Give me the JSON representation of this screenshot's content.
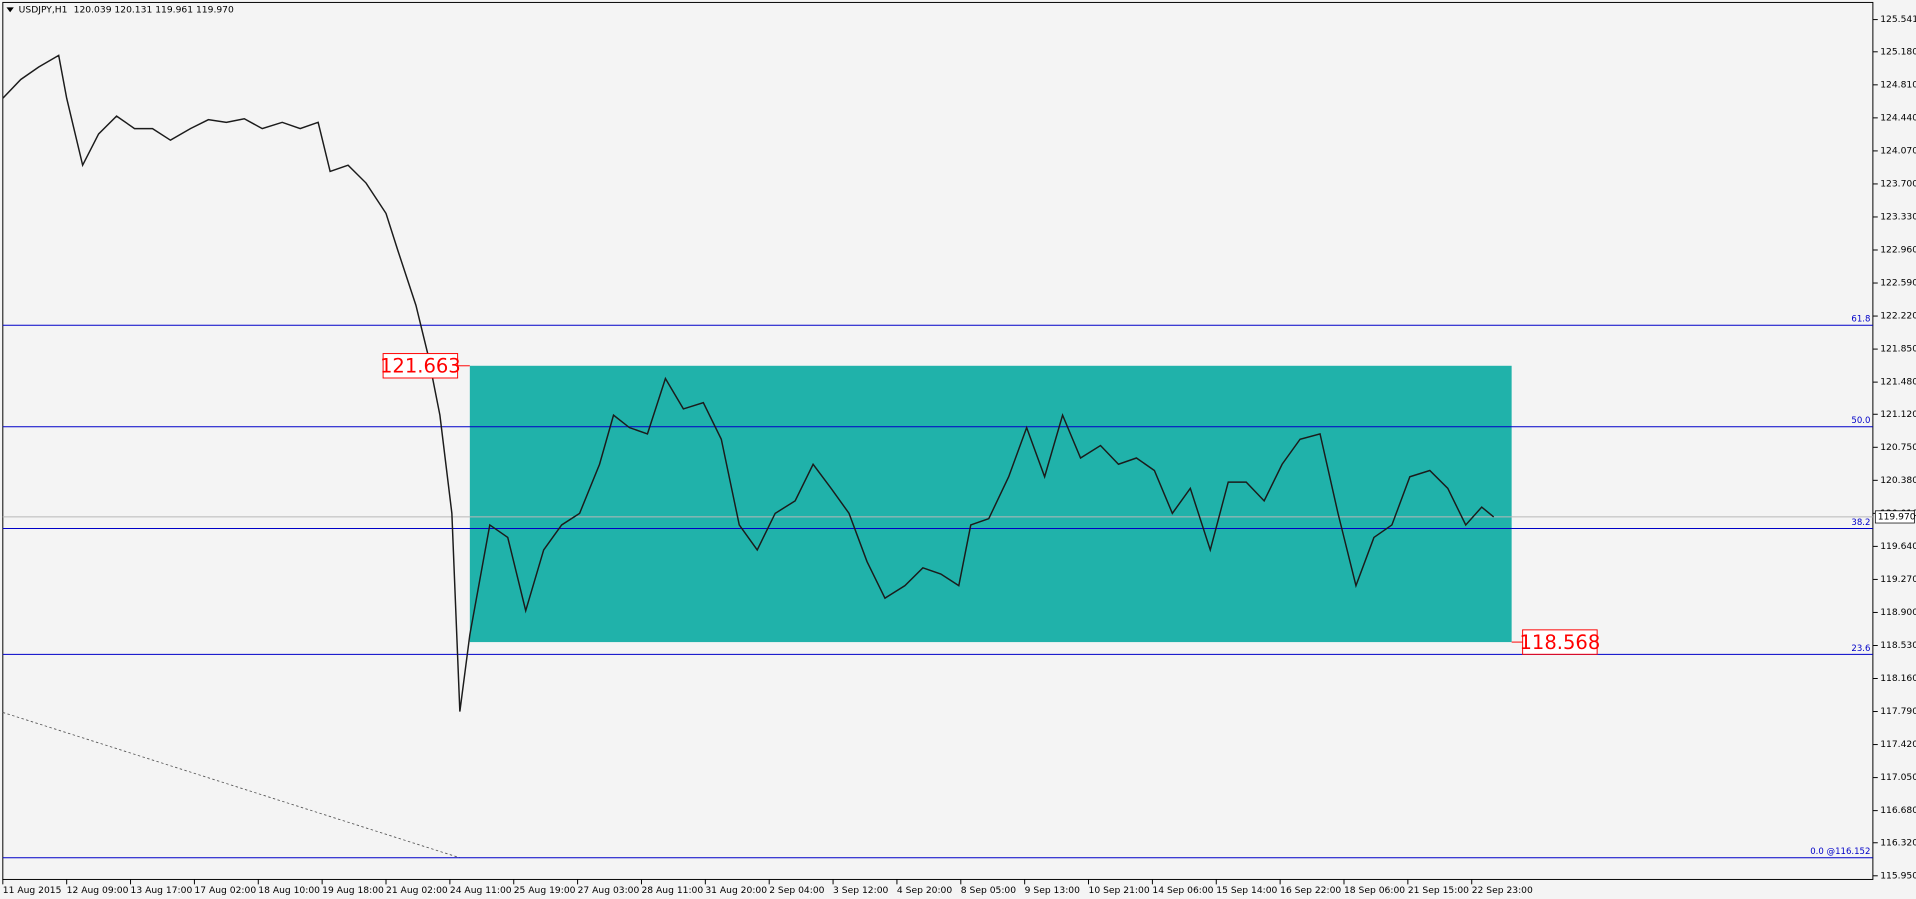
{
  "chart_data": {
    "type": "line",
    "title": "USDJPY,H1",
    "subtitle": "120.039 120.131 119.961 119.970",
    "x": [
      0,
      9,
      18,
      28,
      32,
      40,
      48,
      57,
      66,
      75,
      84,
      94,
      103,
      112,
      121,
      130,
      140,
      149,
      158,
      164,
      173,
      182,
      192,
      198,
      207,
      213,
      219,
      225,
      229,
      234,
      244,
      253,
      262,
      271,
      280,
      289,
      299,
      306,
      314,
      323,
      332,
      341,
      351,
      360,
      369,
      378,
      387,
      397,
      406,
      415,
      424,
      433,
      442,
      452,
      461,
      470,
      479,
      485,
      494,
      504,
      513,
      522,
      531,
      540,
      550,
      559,
      568,
      577,
      586,
      595,
      605,
      614,
      623,
      632,
      641,
      650,
      660,
      669,
      678,
      687,
      696,
      705,
      715,
      724,
      733,
      741,
      747
    ],
    "series": [
      {
        "name": "USDJPY,H1",
        "color": "#1b1b1b",
        "values": [
          124.66,
          124.87,
          125.01,
          125.14,
          124.66,
          123.91,
          124.26,
          124.46,
          124.32,
          124.32,
          124.19,
          124.32,
          124.42,
          124.39,
          124.43,
          124.32,
          124.39,
          124.32,
          124.39,
          123.84,
          123.91,
          123.71,
          123.37,
          122.95,
          122.34,
          121.79,
          121.11,
          120.01,
          117.79,
          118.65,
          119.88,
          119.74,
          118.92,
          119.6,
          119.88,
          120.01,
          120.56,
          121.11,
          120.97,
          120.9,
          121.52,
          121.18,
          121.25,
          120.84,
          119.88,
          119.6,
          120.01,
          120.15,
          120.56,
          120.29,
          120.01,
          119.47,
          119.06,
          119.2,
          119.4,
          119.33,
          119.2,
          119.88,
          119.95,
          120.42,
          120.97,
          120.42,
          121.11,
          120.63,
          120.77,
          120.56,
          120.63,
          120.49,
          120.01,
          120.29,
          119.6,
          120.36,
          120.36,
          120.15,
          120.56,
          120.84,
          120.9,
          120.01,
          119.2,
          119.74,
          119.88,
          120.42,
          120.49,
          120.29,
          119.88,
          120.08,
          119.97
        ]
      }
    ],
    "xlim": [
      0,
      937
    ],
    "ylim": [
      115.909,
      125.733
    ],
    "xticks": [
      {
        "value": 0,
        "label": "11 Aug 2015"
      },
      {
        "value": 32,
        "label": "12 Aug 09:00"
      },
      {
        "value": 64,
        "label": "13 Aug 17:00"
      },
      {
        "value": 96,
        "label": "17 Aug 02:00"
      },
      {
        "value": 128,
        "label": "18 Aug 10:00"
      },
      {
        "value": 160,
        "label": "19 Aug 18:00"
      },
      {
        "value": 192,
        "label": "21 Aug 02:00"
      },
      {
        "value": 224,
        "label": "24 Aug 11:00"
      },
      {
        "value": 256,
        "label": "25 Aug 19:00"
      },
      {
        "value": 288,
        "label": "27 Aug 03:00"
      },
      {
        "value": 320,
        "label": "28 Aug 11:00"
      },
      {
        "value": 352,
        "label": "31 Aug 20:00"
      },
      {
        "value": 384,
        "label": "2 Sep 04:00"
      },
      {
        "value": 416,
        "label": "3 Sep 12:00"
      },
      {
        "value": 448,
        "label": "4 Sep 20:00"
      },
      {
        "value": 480,
        "label": "8 Sep 05:00"
      },
      {
        "value": 512,
        "label": "9 Sep 13:00"
      },
      {
        "value": 544,
        "label": "10 Sep 21:00"
      },
      {
        "value": 576,
        "label": "14 Sep 06:00"
      },
      {
        "value": 608,
        "label": "15 Sep 14:00"
      },
      {
        "value": 640,
        "label": "16 Sep 22:00"
      },
      {
        "value": 672,
        "label": "18 Sep 06:00"
      },
      {
        "value": 704,
        "label": "21 Sep 15:00"
      },
      {
        "value": 736,
        "label": "22 Sep 23:00"
      }
    ],
    "yticks": [
      {
        "value": 125.541,
        "label": "125.541"
      },
      {
        "value": 125.18,
        "label": "125.180"
      },
      {
        "value": 124.81,
        "label": "124.810"
      },
      {
        "value": 124.44,
        "label": "124.440"
      },
      {
        "value": 124.07,
        "label": "124.070"
      },
      {
        "value": 123.7,
        "label": "123.700"
      },
      {
        "value": 123.33,
        "label": "123.330"
      },
      {
        "value": 122.96,
        "label": "122.960"
      },
      {
        "value": 122.59,
        "label": "122.590"
      },
      {
        "value": 122.22,
        "label": "122.220"
      },
      {
        "value": 121.85,
        "label": "121.850"
      },
      {
        "value": 121.48,
        "label": "121.480"
      },
      {
        "value": 121.12,
        "label": "121.120"
      },
      {
        "value": 120.75,
        "label": "120.750"
      },
      {
        "value": 120.38,
        "label": "120.380"
      },
      {
        "value": 120.01,
        "label": "120.010"
      },
      {
        "value": 119.64,
        "label": "119.640"
      },
      {
        "value": 119.27,
        "label": "119.270"
      },
      {
        "value": 118.9,
        "label": "118.900"
      },
      {
        "value": 118.53,
        "label": "118.530"
      },
      {
        "value": 118.16,
        "label": "118.160"
      },
      {
        "value": 117.79,
        "label": "117.790"
      },
      {
        "value": 117.42,
        "label": "117.420"
      },
      {
        "value": 117.05,
        "label": "117.050"
      },
      {
        "value": 116.68,
        "label": "116.680"
      },
      {
        "value": 116.32,
        "label": "116.320"
      },
      {
        "value": 115.95,
        "label": "115.950"
      }
    ],
    "last_price": {
      "value": 119.97,
      "label": "119.970"
    },
    "fib_levels": [
      {
        "label": "61.8",
        "price": 122.117
      },
      {
        "label": "50.0",
        "price": 120.98
      },
      {
        "label": "38.2",
        "price": 119.84
      },
      {
        "label": "23.6",
        "price": 118.43
      },
      {
        "label": "0.0 @116.152",
        "price": 116.152
      }
    ],
    "fib_color": "#0000c8",
    "range_box": {
      "x": [
        234,
        756
      ],
      "high": {
        "value": 121.663,
        "label": "121.663"
      },
      "low": {
        "value": 118.568,
        "label": "118.568"
      },
      "color": "#20b2aa",
      "label_color": "#ff0000"
    },
    "trendline": {
      "x": [
        0,
        229
      ],
      "values": [
        117.78,
        116.152
      ]
    }
  }
}
